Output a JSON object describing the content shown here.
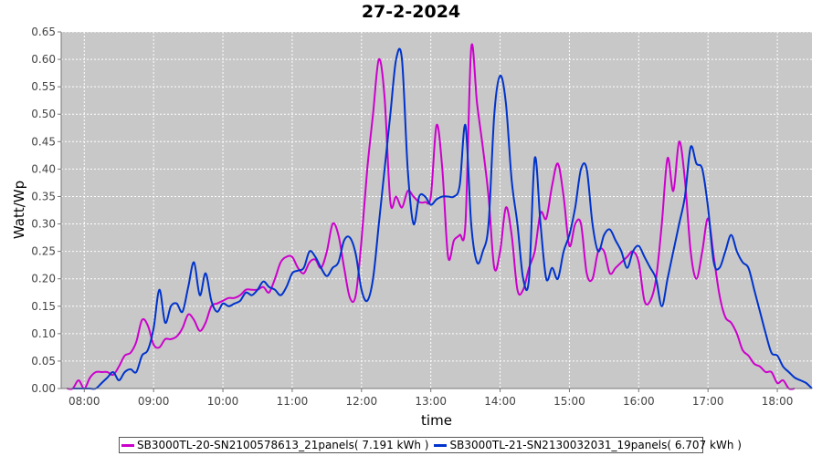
{
  "chart_data": {
    "type": "line",
    "title": "27-2-2024",
    "xlabel": "time",
    "ylabel": "Watt/Wp",
    "xlim": [
      "07:40",
      "18:30"
    ],
    "ylim": [
      0,
      0.65
    ],
    "yticks": [
      "0.00",
      "0.05",
      "0.10",
      "0.15",
      "0.20",
      "0.25",
      "0.30",
      "0.35",
      "0.40",
      "0.45",
      "0.50",
      "0.55",
      "0.60",
      "0.65"
    ],
    "xticks": [
      "08:00",
      "09:00",
      "10:00",
      "11:00",
      "12:00",
      "13:00",
      "14:00",
      "15:00",
      "16:00",
      "17:00",
      "18:00"
    ],
    "grid": true,
    "legend_position": "bottom",
    "plot_background": "#c8c8c8",
    "series": [
      {
        "name": "SB3000TL-20-SN2100578613_21panels( 7.191 kWh )",
        "color": "#cc00cc",
        "points": [
          [
            "07:45",
            0.0
          ],
          [
            "07:50",
            0.0
          ],
          [
            "07:55",
            0.015
          ],
          [
            "08:00",
            0.0
          ],
          [
            "08:05",
            0.02
          ],
          [
            "08:10",
            0.03
          ],
          [
            "08:15",
            0.03
          ],
          [
            "08:20",
            0.03
          ],
          [
            "08:25",
            0.025
          ],
          [
            "08:30",
            0.04
          ],
          [
            "08:35",
            0.06
          ],
          [
            "08:40",
            0.065
          ],
          [
            "08:45",
            0.085
          ],
          [
            "08:50",
            0.125
          ],
          [
            "08:55",
            0.115
          ],
          [
            "09:00",
            0.08
          ],
          [
            "09:05",
            0.075
          ],
          [
            "09:10",
            0.09
          ],
          [
            "09:15",
            0.09
          ],
          [
            "09:20",
            0.095
          ],
          [
            "09:25",
            0.11
          ],
          [
            "09:30",
            0.135
          ],
          [
            "09:35",
            0.125
          ],
          [
            "09:40",
            0.105
          ],
          [
            "09:45",
            0.12
          ],
          [
            "09:50",
            0.15
          ],
          [
            "09:55",
            0.155
          ],
          [
            "10:00",
            0.16
          ],
          [
            "10:05",
            0.165
          ],
          [
            "10:10",
            0.165
          ],
          [
            "10:15",
            0.17
          ],
          [
            "10:20",
            0.18
          ],
          [
            "10:25",
            0.18
          ],
          [
            "10:30",
            0.18
          ],
          [
            "10:35",
            0.185
          ],
          [
            "10:40",
            0.175
          ],
          [
            "10:45",
            0.2
          ],
          [
            "10:50",
            0.23
          ],
          [
            "10:55",
            0.24
          ],
          [
            "11:00",
            0.24
          ],
          [
            "11:05",
            0.22
          ],
          [
            "11:10",
            0.21
          ],
          [
            "11:15",
            0.23
          ],
          [
            "11:20",
            0.235
          ],
          [
            "11:25",
            0.22
          ],
          [
            "11:30",
            0.25
          ],
          [
            "11:35",
            0.3
          ],
          [
            "11:40",
            0.28
          ],
          [
            "11:45",
            0.22
          ],
          [
            "11:50",
            0.165
          ],
          [
            "11:55",
            0.17
          ],
          [
            "12:00",
            0.27
          ],
          [
            "12:05",
            0.4
          ],
          [
            "12:10",
            0.5
          ],
          [
            "12:15",
            0.6
          ],
          [
            "12:20",
            0.53
          ],
          [
            "12:25",
            0.34
          ],
          [
            "12:30",
            0.35
          ],
          [
            "12:35",
            0.33
          ],
          [
            "12:40",
            0.36
          ],
          [
            "12:45",
            0.35
          ],
          [
            "12:50",
            0.34
          ],
          [
            "12:55",
            0.34
          ],
          [
            "13:00",
            0.35
          ],
          [
            "13:05",
            0.48
          ],
          [
            "13:10",
            0.4
          ],
          [
            "13:15",
            0.24
          ],
          [
            "13:20",
            0.27
          ],
          [
            "13:25",
            0.28
          ],
          [
            "13:30",
            0.3
          ],
          [
            "13:35",
            0.62
          ],
          [
            "13:40",
            0.52
          ],
          [
            "13:45",
            0.44
          ],
          [
            "13:50",
            0.35
          ],
          [
            "13:55",
            0.22
          ],
          [
            "14:00",
            0.25
          ],
          [
            "14:05",
            0.33
          ],
          [
            "14:10",
            0.28
          ],
          [
            "14:15",
            0.18
          ],
          [
            "14:20",
            0.18
          ],
          [
            "14:25",
            0.22
          ],
          [
            "14:30",
            0.25
          ],
          [
            "14:35",
            0.32
          ],
          [
            "14:40",
            0.31
          ],
          [
            "14:45",
            0.37
          ],
          [
            "14:50",
            0.41
          ],
          [
            "14:55",
            0.35
          ],
          [
            "15:00",
            0.26
          ],
          [
            "15:05",
            0.3
          ],
          [
            "15:10",
            0.3
          ],
          [
            "15:15",
            0.21
          ],
          [
            "15:20",
            0.2
          ],
          [
            "15:25",
            0.25
          ],
          [
            "15:30",
            0.25
          ],
          [
            "15:35",
            0.21
          ],
          [
            "15:40",
            0.22
          ],
          [
            "15:45",
            0.23
          ],
          [
            "15:50",
            0.24
          ],
          [
            "15:55",
            0.25
          ],
          [
            "16:00",
            0.23
          ],
          [
            "16:05",
            0.16
          ],
          [
            "16:10",
            0.16
          ],
          [
            "16:15",
            0.2
          ],
          [
            "16:20",
            0.3
          ],
          [
            "16:25",
            0.42
          ],
          [
            "16:30",
            0.36
          ],
          [
            "16:35",
            0.45
          ],
          [
            "16:40",
            0.38
          ],
          [
            "16:45",
            0.25
          ],
          [
            "16:50",
            0.2
          ],
          [
            "16:55",
            0.25
          ],
          [
            "17:00",
            0.31
          ],
          [
            "17:05",
            0.24
          ],
          [
            "17:10",
            0.17
          ],
          [
            "17:15",
            0.13
          ],
          [
            "17:20",
            0.12
          ],
          [
            "17:25",
            0.1
          ],
          [
            "17:30",
            0.07
          ],
          [
            "17:35",
            0.06
          ],
          [
            "17:40",
            0.045
          ],
          [
            "17:45",
            0.04
          ],
          [
            "17:50",
            0.03
          ],
          [
            "17:55",
            0.03
          ],
          [
            "18:00",
            0.01
          ],
          [
            "18:05",
            0.015
          ],
          [
            "18:10",
            0.0
          ],
          [
            "18:15",
            0.0
          ]
        ]
      },
      {
        "name": "SB3000TL-21-SN2130032031_19panels( 6.707 kWh )",
        "color": "#0033cc",
        "points": [
          [
            "07:50",
            0.0
          ],
          [
            "07:55",
            0.0
          ],
          [
            "08:00",
            0.0
          ],
          [
            "08:05",
            0.0
          ],
          [
            "08:10",
            0.0
          ],
          [
            "08:15",
            0.01
          ],
          [
            "08:20",
            0.02
          ],
          [
            "08:25",
            0.03
          ],
          [
            "08:30",
            0.015
          ],
          [
            "08:35",
            0.03
          ],
          [
            "08:40",
            0.035
          ],
          [
            "08:45",
            0.03
          ],
          [
            "08:50",
            0.06
          ],
          [
            "08:55",
            0.07
          ],
          [
            "09:00",
            0.11
          ],
          [
            "09:05",
            0.18
          ],
          [
            "09:10",
            0.12
          ],
          [
            "09:15",
            0.15
          ],
          [
            "09:20",
            0.155
          ],
          [
            "09:25",
            0.14
          ],
          [
            "09:30",
            0.185
          ],
          [
            "09:35",
            0.23
          ],
          [
            "09:40",
            0.17
          ],
          [
            "09:45",
            0.21
          ],
          [
            "09:50",
            0.16
          ],
          [
            "09:55",
            0.14
          ],
          [
            "10:00",
            0.155
          ],
          [
            "10:05",
            0.15
          ],
          [
            "10:10",
            0.155
          ],
          [
            "10:15",
            0.16
          ],
          [
            "10:20",
            0.175
          ],
          [
            "10:25",
            0.17
          ],
          [
            "10:30",
            0.18
          ],
          [
            "10:35",
            0.195
          ],
          [
            "10:40",
            0.185
          ],
          [
            "10:45",
            0.18
          ],
          [
            "10:50",
            0.17
          ],
          [
            "10:55",
            0.185
          ],
          [
            "11:00",
            0.21
          ],
          [
            "11:05",
            0.215
          ],
          [
            "11:10",
            0.22
          ],
          [
            "11:15",
            0.25
          ],
          [
            "11:20",
            0.24
          ],
          [
            "11:25",
            0.22
          ],
          [
            "11:30",
            0.205
          ],
          [
            "11:35",
            0.22
          ],
          [
            "11:40",
            0.23
          ],
          [
            "11:45",
            0.27
          ],
          [
            "11:50",
            0.275
          ],
          [
            "11:55",
            0.245
          ],
          [
            "12:00",
            0.18
          ],
          [
            "12:05",
            0.16
          ],
          [
            "12:10",
            0.2
          ],
          [
            "12:15",
            0.3
          ],
          [
            "12:20",
            0.4
          ],
          [
            "12:25",
            0.5
          ],
          [
            "12:30",
            0.6
          ],
          [
            "12:35",
            0.6
          ],
          [
            "12:40",
            0.4
          ],
          [
            "12:45",
            0.3
          ],
          [
            "12:50",
            0.35
          ],
          [
            "12:55",
            0.35
          ],
          [
            "13:00",
            0.335
          ],
          [
            "13:05",
            0.345
          ],
          [
            "13:10",
            0.35
          ],
          [
            "13:15",
            0.35
          ],
          [
            "13:20",
            0.35
          ],
          [
            "13:25",
            0.37
          ],
          [
            "13:30",
            0.48
          ],
          [
            "13:35",
            0.3
          ],
          [
            "13:40",
            0.23
          ],
          [
            "13:45",
            0.25
          ],
          [
            "13:50",
            0.3
          ],
          [
            "13:55",
            0.5
          ],
          [
            "14:00",
            0.57
          ],
          [
            "14:05",
            0.52
          ],
          [
            "14:10",
            0.38
          ],
          [
            "14:15",
            0.3
          ],
          [
            "14:20",
            0.2
          ],
          [
            "14:25",
            0.2
          ],
          [
            "14:30",
            0.42
          ],
          [
            "14:35",
            0.3
          ],
          [
            "14:40",
            0.2
          ],
          [
            "14:45",
            0.22
          ],
          [
            "14:50",
            0.2
          ],
          [
            "14:55",
            0.25
          ],
          [
            "15:00",
            0.28
          ],
          [
            "15:05",
            0.33
          ],
          [
            "15:10",
            0.4
          ],
          [
            "15:15",
            0.4
          ],
          [
            "15:20",
            0.3
          ],
          [
            "15:25",
            0.25
          ],
          [
            "15:30",
            0.28
          ],
          [
            "15:35",
            0.29
          ],
          [
            "15:40",
            0.27
          ],
          [
            "15:45",
            0.25
          ],
          [
            "15:50",
            0.22
          ],
          [
            "15:55",
            0.25
          ],
          [
            "16:00",
            0.26
          ],
          [
            "16:05",
            0.24
          ],
          [
            "16:10",
            0.22
          ],
          [
            "16:15",
            0.2
          ],
          [
            "16:20",
            0.15
          ],
          [
            "16:25",
            0.2
          ],
          [
            "16:30",
            0.25
          ],
          [
            "16:35",
            0.3
          ],
          [
            "16:40",
            0.35
          ],
          [
            "16:45",
            0.44
          ],
          [
            "16:50",
            0.41
          ],
          [
            "16:55",
            0.4
          ],
          [
            "17:00",
            0.33
          ],
          [
            "17:05",
            0.23
          ],
          [
            "17:10",
            0.22
          ],
          [
            "17:15",
            0.25
          ],
          [
            "17:20",
            0.28
          ],
          [
            "17:25",
            0.25
          ],
          [
            "17:30",
            0.23
          ],
          [
            "17:35",
            0.22
          ],
          [
            "17:40",
            0.18
          ],
          [
            "17:45",
            0.14
          ],
          [
            "17:50",
            0.1
          ],
          [
            "17:55",
            0.065
          ],
          [
            "18:00",
            0.06
          ],
          [
            "18:05",
            0.04
          ],
          [
            "18:10",
            0.03
          ],
          [
            "18:15",
            0.02
          ],
          [
            "18:20",
            0.015
          ],
          [
            "18:25",
            0.01
          ],
          [
            "18:30",
            0.0
          ]
        ]
      }
    ]
  }
}
